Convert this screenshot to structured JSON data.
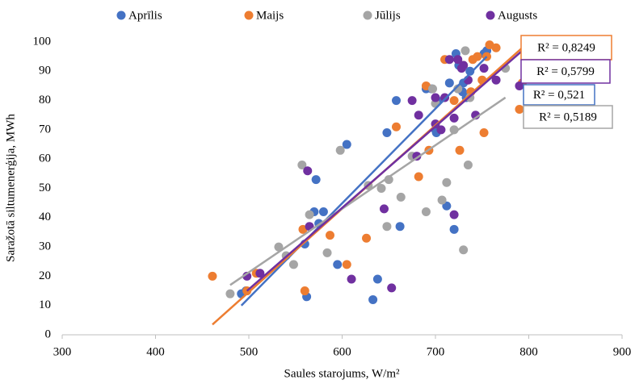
{
  "chart_data": {
    "type": "scatter",
    "x_label": "Saules starojums, W/m²",
    "y_label": "Saražotā siltumenerģija, MWh",
    "xlim": [
      300,
      900
    ],
    "xticks": [
      300,
      400,
      500,
      600,
      700,
      800,
      900
    ],
    "ylim": [
      0,
      100
    ],
    "yticks": [
      0,
      10,
      20,
      30,
      40,
      50,
      60,
      70,
      80,
      90,
      100
    ],
    "grid": false,
    "legend": "top",
    "series": [
      {
        "name": "Aprīlis",
        "color": "#4472c4",
        "x": [
          492,
          497,
          562,
          560,
          570,
          572,
          575,
          580,
          595,
          605,
          633,
          638,
          648,
          658,
          662,
          690,
          696,
          700,
          701,
          702,
          712,
          715,
          720,
          722,
          725,
          729,
          730,
          733,
          737,
          752,
          755
        ],
        "values": [
          14,
          15,
          13,
          31,
          42,
          53,
          38,
          42,
          24,
          65,
          12,
          19,
          69,
          80,
          37,
          84,
          84,
          70,
          69,
          80,
          44,
          86,
          36,
          96,
          92,
          83,
          86,
          81,
          90,
          96,
          97
        ],
        "trend_x": [
          492,
          755
        ],
        "trend_y": [
          10,
          95
        ],
        "r2_label": "R² = 0,521"
      },
      {
        "name": "Maijs",
        "color": "#ed7d31",
        "x": [
          461,
          498,
          508,
          558,
          560,
          587,
          605,
          626,
          658,
          682,
          690,
          693,
          710,
          720,
          726,
          730,
          738,
          740,
          745,
          750,
          752,
          755,
          758,
          765,
          790,
          793
        ],
        "values": [
          20,
          15,
          21,
          36,
          15,
          34,
          24,
          33,
          71,
          54,
          85,
          63,
          94,
          80,
          63,
          92,
          83,
          94,
          95,
          87,
          69,
          95,
          99,
          98,
          77,
          86
        ],
        "trend_x": [
          461,
          793
        ],
        "trend_y": [
          3.5,
          98
        ],
        "r2_label": "R² = 0,8249"
      },
      {
        "name": "Jūlijs",
        "color": "#a5a5a5",
        "x": [
          480,
          532,
          540,
          548,
          557,
          565,
          584,
          598,
          628,
          642,
          648,
          650,
          663,
          675,
          690,
          697,
          700,
          707,
          712,
          720,
          724,
          730,
          732,
          735,
          737,
          775
        ],
        "values": [
          14,
          30,
          27,
          24,
          58,
          41,
          28,
          63,
          51,
          50,
          37,
          53,
          47,
          61,
          42,
          84,
          79,
          46,
          52,
          70,
          84,
          29,
          97,
          58,
          81,
          91
        ],
        "trend_x": [
          480,
          775
        ],
        "trend_y": [
          17,
          81
        ],
        "r2_label": "R² = 0,5189"
      },
      {
        "name": "Augusts",
        "color": "#7030a0",
        "x": [
          498,
          512,
          563,
          565,
          610,
          645,
          653,
          675,
          680,
          682,
          700,
          700,
          706,
          710,
          715,
          720,
          720,
          724,
          728,
          730,
          735,
          743,
          752,
          765,
          790
        ],
        "values": [
          20,
          21,
          56,
          37,
          19,
          43,
          16,
          80,
          61,
          75,
          81,
          72,
          70,
          81,
          94,
          74,
          41,
          94,
          91,
          92,
          87,
          75,
          91,
          87,
          85
        ],
        "trend_x": [
          498,
          793
        ],
        "trend_y": [
          15,
          97
        ],
        "r2_label": "R² = 0,5799"
      }
    ]
  }
}
